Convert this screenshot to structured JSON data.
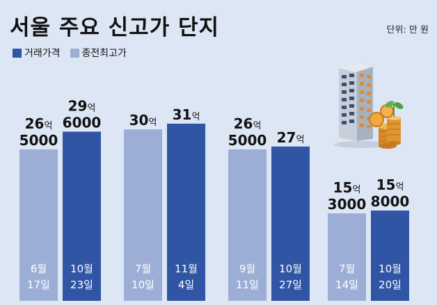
{
  "title": "서울 주요 신고가 단지",
  "unit_label": "단위: 만 원",
  "legend": [
    {
      "label": "거래가격",
      "color": "#2f55a4"
    },
    {
      "label": "종전최고가",
      "color": "#9daed6"
    }
  ],
  "colors": {
    "background": "#dde6f4",
    "deal_bar": "#2f55a4",
    "prev_bar": "#9daed6"
  },
  "chart_data": {
    "type": "bar",
    "title": "서울 주요 신고가 단지",
    "unit": "단위: 만 원",
    "series_names": [
      "종전최고가",
      "거래가격"
    ],
    "groups": [
      {
        "bars": [
          {
            "series": "종전최고가",
            "value": 265000,
            "label_top": "26억",
            "label_bottom": "5000",
            "date_top": "6월",
            "date_bottom": "17일"
          },
          {
            "series": "거래가격",
            "value": 296000,
            "label_top": "29억",
            "label_bottom": "6000",
            "date_top": "10월",
            "date_bottom": "23일"
          }
        ]
      },
      {
        "bars": [
          {
            "series": "종전최고가",
            "value": 300000,
            "label_top": "30억",
            "label_bottom": "",
            "date_top": "7월",
            "date_bottom": "10일"
          },
          {
            "series": "거래가격",
            "value": 310000,
            "label_top": "31억",
            "label_bottom": "",
            "date_top": "11월",
            "date_bottom": "4일"
          }
        ]
      },
      {
        "bars": [
          {
            "series": "종전최고가",
            "value": 265000,
            "label_top": "26억",
            "label_bottom": "5000",
            "date_top": "9월",
            "date_bottom": "11일"
          },
          {
            "series": "거래가격",
            "value": 270000,
            "label_top": "27억",
            "label_bottom": "",
            "date_top": "10월",
            "date_bottom": "27일"
          }
        ]
      },
      {
        "bars": [
          {
            "series": "종전최고가",
            "value": 153000,
            "label_top": "15억",
            "label_bottom": "3000",
            "date_top": "7월",
            "date_bottom": "14일"
          },
          {
            "series": "거래가격",
            "value": 158000,
            "label_top": "15억",
            "label_bottom": "8000",
            "date_top": "10월",
            "date_bottom": "20일"
          }
        ]
      }
    ]
  }
}
